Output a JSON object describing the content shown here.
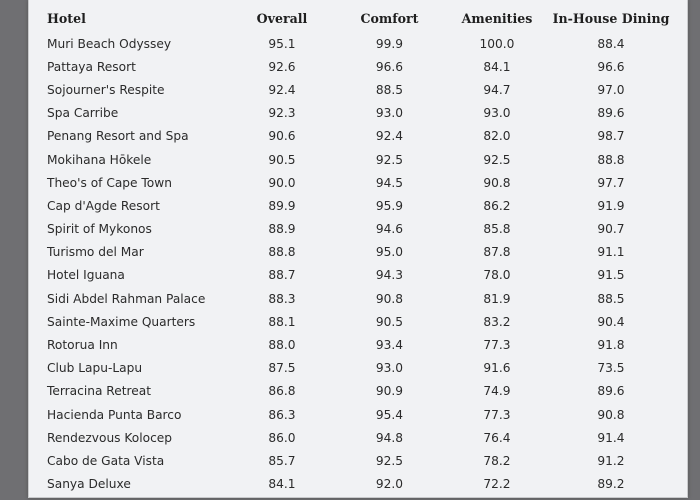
{
  "table": {
    "headers": [
      "Hotel",
      "Overall",
      "Comfort",
      "Amenities",
      "In-House Dining"
    ],
    "rows": [
      [
        "Muri Beach Odyssey",
        "95.1",
        "99.9",
        "100.0",
        "88.4"
      ],
      [
        "Pattaya Resort",
        "92.6",
        "96.6",
        "84.1",
        "96.6"
      ],
      [
        "Sojourner's Respite",
        "92.4",
        "88.5",
        "94.7",
        "97.0"
      ],
      [
        "Spa Carribe",
        "92.3",
        "93.0",
        "93.0",
        "89.6"
      ],
      [
        "Penang Resort and Spa",
        "90.6",
        "92.4",
        "82.0",
        "98.7"
      ],
      [
        "Mokihana Hōkele",
        "90.5",
        "92.5",
        "92.5",
        "88.8"
      ],
      [
        "Theo's of Cape Town",
        "90.0",
        "94.5",
        "90.8",
        "97.7"
      ],
      [
        "Cap d'Agde Resort",
        "89.9",
        "95.9",
        "86.2",
        "91.9"
      ],
      [
        "Spirit of Mykonos",
        "88.9",
        "94.6",
        "85.8",
        "90.7"
      ],
      [
        "Turismo del Mar",
        "88.8",
        "95.0",
        "87.8",
        "91.1"
      ],
      [
        "Hotel Iguana",
        "88.7",
        "94.3",
        "78.0",
        "91.5"
      ],
      [
        "Sidi Abdel Rahman Palace",
        "88.3",
        "90.8",
        "81.9",
        "88.5"
      ],
      [
        "Sainte-Maxime Quarters",
        "88.1",
        "90.5",
        "83.2",
        "90.4"
      ],
      [
        "Rotorua Inn",
        "88.0",
        "93.4",
        "77.3",
        "91.8"
      ],
      [
        "Club Lapu-Lapu",
        "87.5",
        "93.0",
        "91.6",
        "73.5"
      ],
      [
        "Terracina Retreat",
        "86.8",
        "90.9",
        "74.9",
        "89.6"
      ],
      [
        "Hacienda Punta Barco",
        "86.3",
        "95.4",
        "77.3",
        "90.8"
      ],
      [
        "Rendezvous Kolocep",
        "86.0",
        "94.8",
        "76.4",
        "91.4"
      ],
      [
        "Cabo de Gata Vista",
        "85.7",
        "92.5",
        "78.2",
        "91.2"
      ],
      [
        "Sanya Deluxe",
        "84.1",
        "92.0",
        "72.2",
        "89.2"
      ]
    ]
  }
}
